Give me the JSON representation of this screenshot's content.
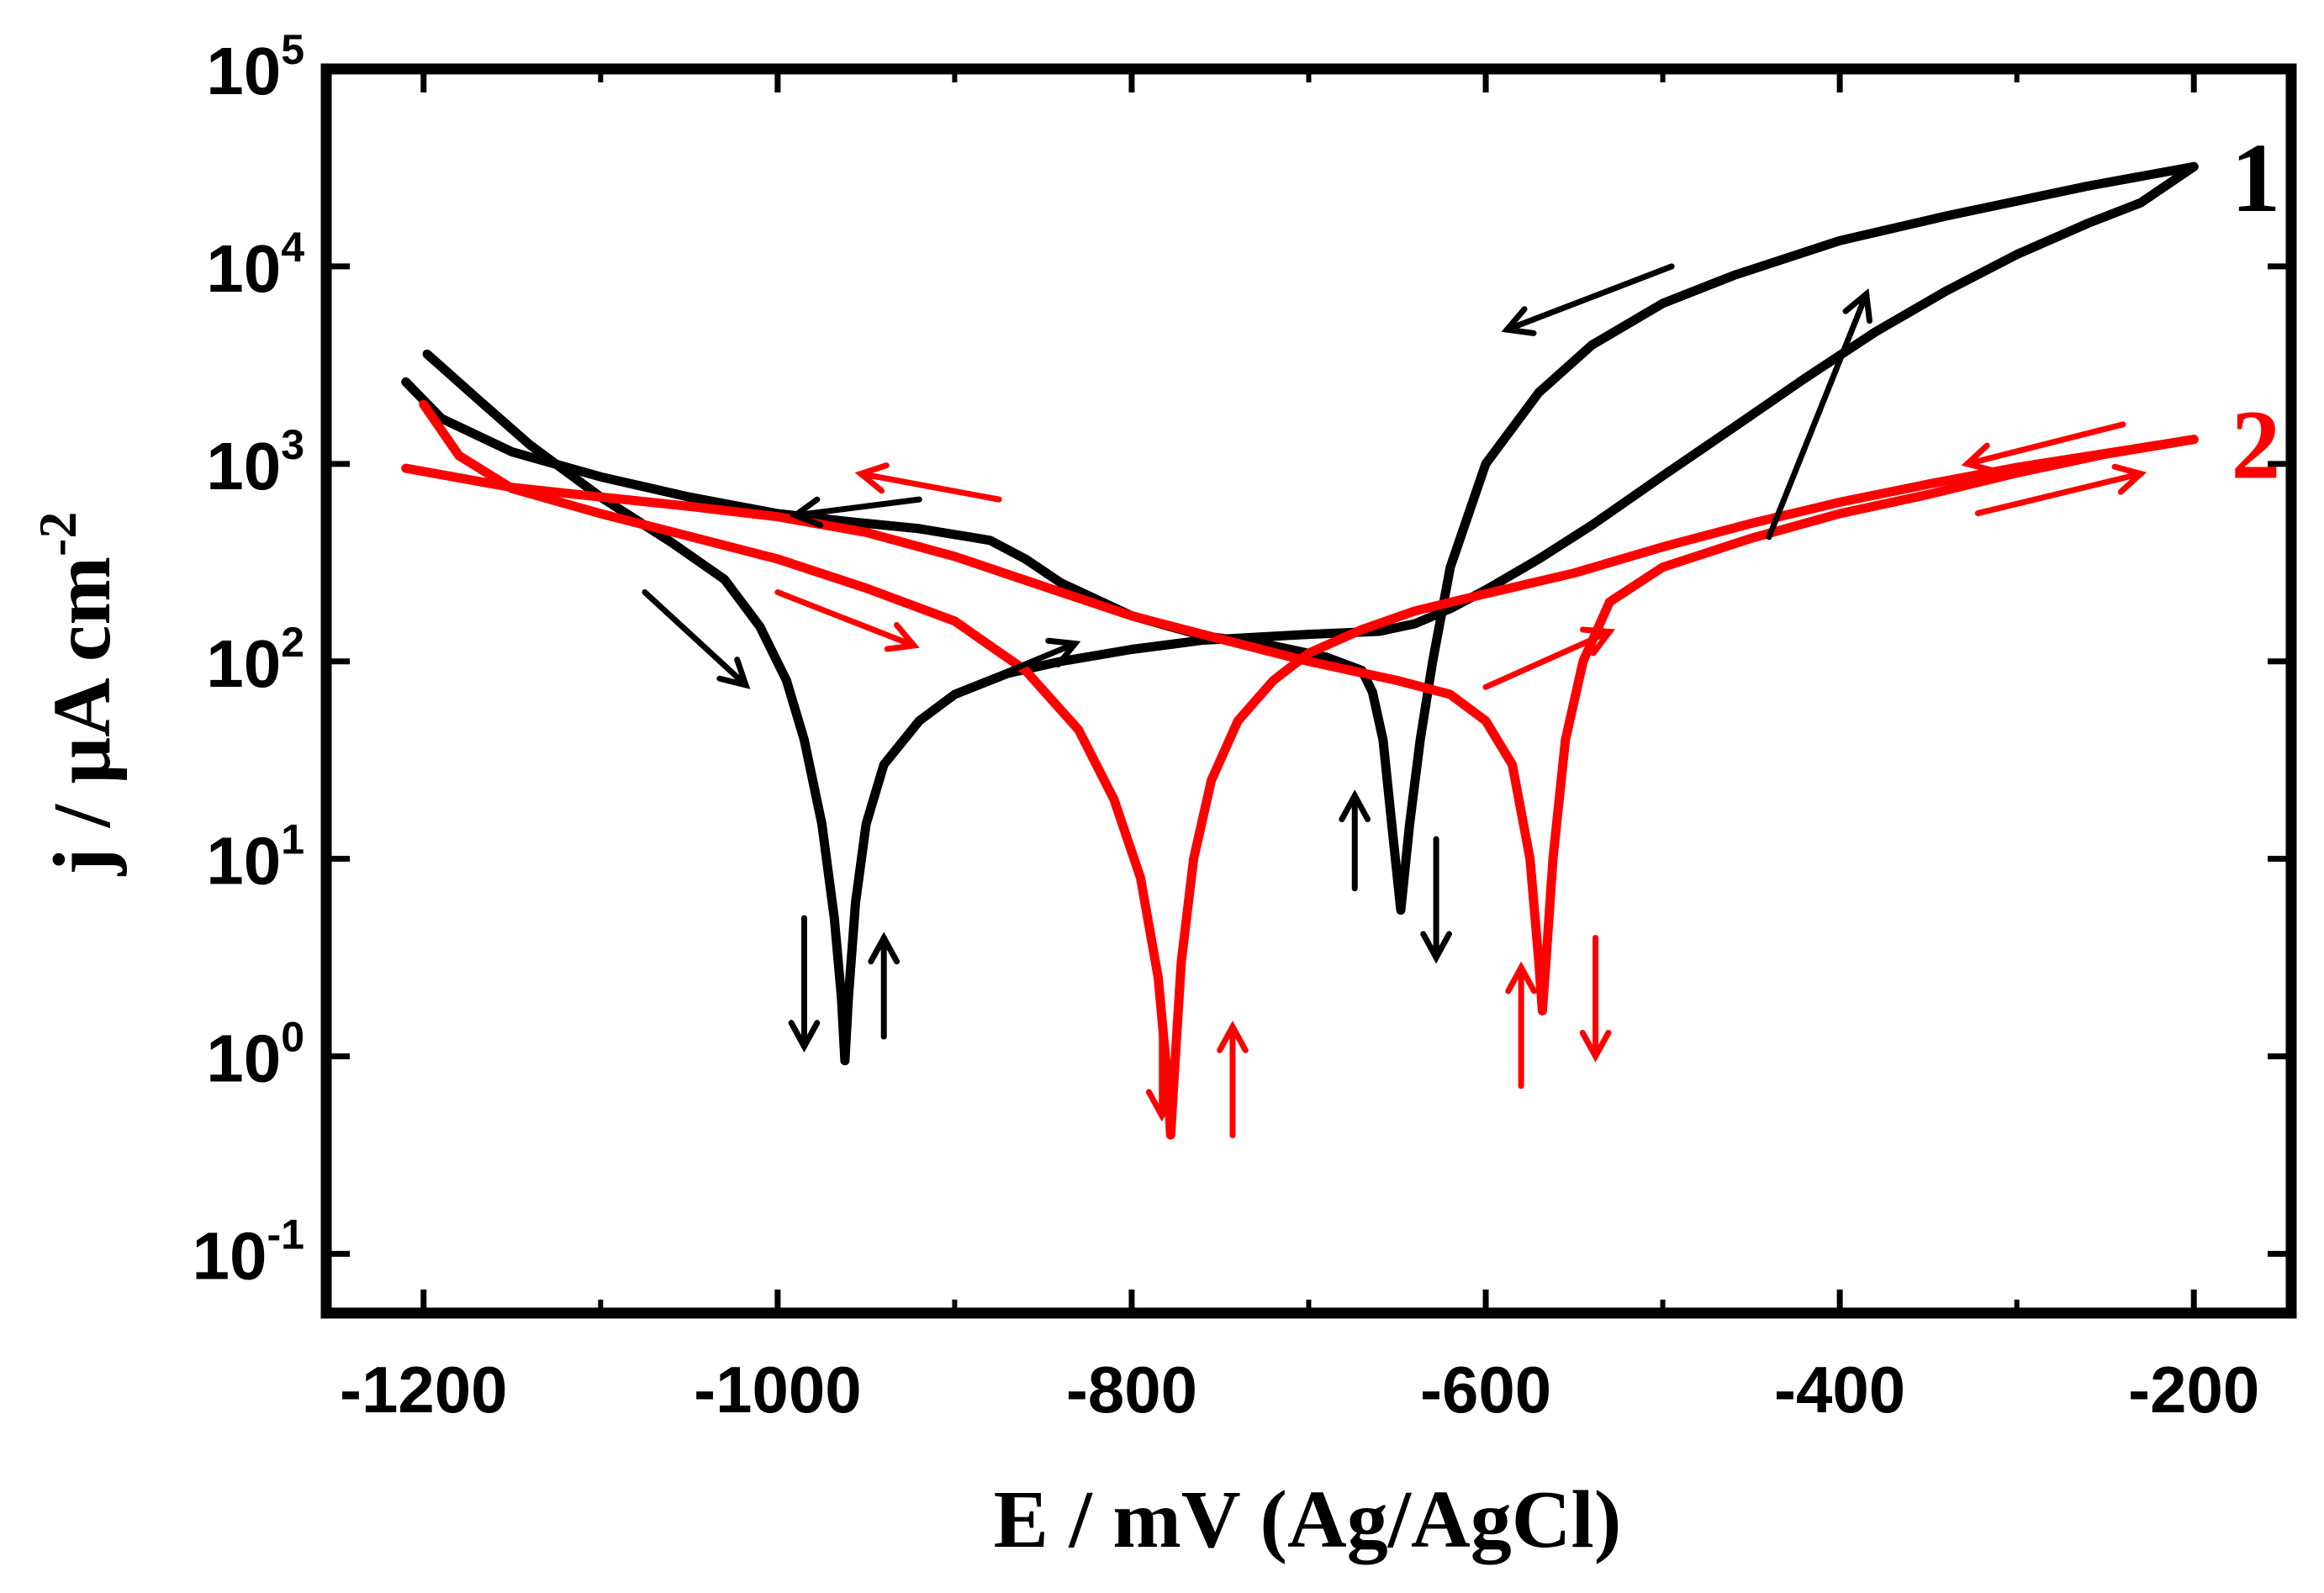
{
  "chart_data": {
    "type": "line",
    "title": "",
    "xlabel": "E / mV (Ag/AgCl)",
    "ylabel": "j / μA cm",
    "ylabel_exponent": "-2",
    "xlim": [
      -1255,
      -145
    ],
    "ylim_log10": [
      -1.3,
      5
    ],
    "y_scale": "log",
    "x_ticks": [
      {
        "value": -1200,
        "label": "-1200"
      },
      {
        "value": -1000,
        "label": "-1000"
      },
      {
        "value": -800,
        "label": "-800"
      },
      {
        "value": -600,
        "label": "-600"
      },
      {
        "value": -400,
        "label": "-400"
      },
      {
        "value": -200,
        "label": "-200"
      }
    ],
    "y_ticks": [
      {
        "exp": 5,
        "base": "10",
        "sup": "5"
      },
      {
        "exp": 4,
        "base": "10",
        "sup": "4"
      },
      {
        "exp": 3,
        "base": "10",
        "sup": "3"
      },
      {
        "exp": 2,
        "base": "10",
        "sup": "2"
      },
      {
        "exp": 1,
        "base": "10",
        "sup": "1"
      },
      {
        "exp": 0,
        "base": "10",
        "sup": "0"
      },
      {
        "exp": -1,
        "base": "10",
        "sup": "-1"
      }
    ],
    "series": [
      {
        "name": "1",
        "color": "#000000",
        "forward": [
          [
            -1198,
            3600
          ],
          [
            -1170,
            2150
          ],
          [
            -1140,
            1250
          ],
          [
            -1100,
            680
          ],
          [
            -1060,
            400
          ],
          [
            -1030,
            260
          ],
          [
            -1010,
            150
          ],
          [
            -995,
            80
          ],
          [
            -985,
            40
          ],
          [
            -975,
            15
          ],
          [
            -968,
            5
          ],
          [
            -964,
            2
          ],
          [
            -962,
            0.95
          ],
          [
            -960,
            2
          ],
          [
            -956,
            6
          ],
          [
            -950,
            15
          ],
          [
            -940,
            30
          ],
          [
            -920,
            50
          ],
          [
            -900,
            68
          ],
          [
            -870,
            87
          ],
          [
            -840,
            100
          ],
          [
            -800,
            115
          ],
          [
            -760,
            128
          ],
          [
            -720,
            134
          ],
          [
            -700,
            137
          ],
          [
            -660,
            142
          ],
          [
            -640,
            155
          ],
          [
            -620,
            185
          ],
          [
            -600,
            230
          ],
          [
            -570,
            330
          ],
          [
            -540,
            490
          ],
          [
            -500,
            870
          ],
          [
            -460,
            1530
          ],
          [
            -420,
            2700
          ],
          [
            -380,
            4650
          ],
          [
            -340,
            7500
          ],
          [
            -300,
            11500
          ],
          [
            -260,
            16500
          ],
          [
            -230,
            21000
          ],
          [
            -200,
            32000
          ]
        ],
        "reverse": [
          [
            -200,
            32000
          ],
          [
            -260,
            25500
          ],
          [
            -340,
            18000
          ],
          [
            -400,
            13500
          ],
          [
            -460,
            9000
          ],
          [
            -500,
            6500
          ],
          [
            -540,
            4000
          ],
          [
            -570,
            2300
          ],
          [
            -600,
            1000
          ],
          [
            -620,
            300
          ],
          [
            -630,
            100
          ],
          [
            -637,
            40
          ],
          [
            -643,
            15
          ],
          [
            -648,
            5.5
          ],
          [
            -652,
            12
          ],
          [
            -658,
            40
          ],
          [
            -664,
            70
          ],
          [
            -670,
            90
          ],
          [
            -690,
            105
          ],
          [
            -720,
            120
          ],
          [
            -760,
            135
          ],
          [
            -800,
            170
          ],
          [
            -840,
            250
          ],
          [
            -860,
            330
          ],
          [
            -880,
            410
          ],
          [
            -920,
            470
          ],
          [
            -960,
            510
          ],
          [
            -1000,
            560
          ],
          [
            -1050,
            680
          ],
          [
            -1100,
            860
          ],
          [
            -1150,
            1150
          ],
          [
            -1190,
            1700
          ],
          [
            -1210,
            2600
          ]
        ]
      },
      {
        "name": "2",
        "color": "#ff0000",
        "forward": [
          [
            -1200,
            2000
          ],
          [
            -1180,
            1100
          ],
          [
            -1150,
            750
          ],
          [
            -1100,
            560
          ],
          [
            -1050,
            430
          ],
          [
            -1000,
            330
          ],
          [
            -950,
            235
          ],
          [
            -900,
            160
          ],
          [
            -860,
            90
          ],
          [
            -830,
            45
          ],
          [
            -810,
            20
          ],
          [
            -795,
            8
          ],
          [
            -785,
            2.5
          ],
          [
            -780,
            0.8
          ],
          [
            -778,
            0.4
          ],
          [
            -776,
            0.8
          ],
          [
            -772,
            3
          ],
          [
            -765,
            10
          ],
          [
            -755,
            25
          ],
          [
            -740,
            50
          ],
          [
            -720,
            80
          ],
          [
            -700,
            110
          ],
          [
            -670,
            145
          ],
          [
            -640,
            180
          ],
          [
            -600,
            220
          ],
          [
            -550,
            280
          ],
          [
            -500,
            380
          ],
          [
            -450,
            500
          ],
          [
            -400,
            640
          ],
          [
            -350,
            790
          ],
          [
            -300,
            960
          ],
          [
            -250,
            1130
          ],
          [
            -200,
            1330
          ]
        ],
        "reverse": [
          [
            -200,
            1330
          ],
          [
            -250,
            1120
          ],
          [
            -300,
            900
          ],
          [
            -350,
            700
          ],
          [
            -400,
            560
          ],
          [
            -450,
            420
          ],
          [
            -500,
            300
          ],
          [
            -530,
            200
          ],
          [
            -545,
            100
          ],
          [
            -555,
            40
          ],
          [
            -562,
            10
          ],
          [
            -566,
            3
          ],
          [
            -568,
            1.7
          ],
          [
            -570,
            3
          ],
          [
            -575,
            10
          ],
          [
            -585,
            30
          ],
          [
            -600,
            50
          ],
          [
            -620,
            68
          ],
          [
            -650,
            80
          ],
          [
            -700,
            100
          ],
          [
            -750,
            130
          ],
          [
            -800,
            170
          ],
          [
            -850,
            240
          ],
          [
            -900,
            340
          ],
          [
            -950,
            450
          ],
          [
            -1000,
            540
          ],
          [
            -1050,
            610
          ],
          [
            -1100,
            680
          ],
          [
            -1150,
            760
          ],
          [
            -1210,
            950
          ]
        ]
      }
    ],
    "series_labels": [
      {
        "text": "1",
        "color": "#000000",
        "e": -165,
        "logj": 4.45
      },
      {
        "text": "2",
        "color": "#ff0000",
        "e": -165,
        "logj": 3.1
      }
    ],
    "arrows": [
      {
        "color": "#000000",
        "e1": -1075,
        "l1": 2.35,
        "e2": -1018,
        "l2": 1.88
      },
      {
        "color": "#000000",
        "e1": -875,
        "l1": 1.93,
        "e2": -832,
        "l2": 2.09
      },
      {
        "color": "#000000",
        "e1": -920,
        "l1": 2.82,
        "e2": -990,
        "l2": 2.74
      },
      {
        "color": "#000000",
        "e1": -440,
        "l1": 2.63,
        "e2": -385,
        "l2": 3.86
      },
      {
        "color": "#000000",
        "e1": -495,
        "l1": 4.0,
        "e2": -588,
        "l2": 3.68
      },
      {
        "color": "#000000",
        "e1": -985,
        "l1": 0.7,
        "e2": -985,
        "l2": 0.05
      },
      {
        "color": "#000000",
        "e1": -940,
        "l1": 0.1,
        "e2": -940,
        "l2": 0.6
      },
      {
        "color": "#000000",
        "e1": -674,
        "l1": 0.85,
        "e2": -674,
        "l2": 1.32
      },
      {
        "color": "#000000",
        "e1": -628,
        "l1": 1.1,
        "e2": -628,
        "l2": 0.5
      },
      {
        "color": "#ff0000",
        "e1": -1000,
        "l1": 2.35,
        "e2": -923,
        "l2": 2.08
      },
      {
        "color": "#ff0000",
        "e1": -875,
        "l1": 2.82,
        "e2": -953,
        "l2": 2.95
      },
      {
        "color": "#ff0000",
        "e1": -600,
        "l1": 1.87,
        "e2": -530,
        "l2": 2.15
      },
      {
        "color": "#ff0000",
        "e1": -322,
        "l1": 2.75,
        "e2": -230,
        "l2": 2.95
      },
      {
        "color": "#ff0000",
        "e1": -240,
        "l1": 3.2,
        "e2": -328,
        "l2": 3.0
      },
      {
        "color": "#ff0000",
        "e1": -783,
        "l1": 0.3,
        "e2": -783,
        "l2": -0.3
      },
      {
        "color": "#ff0000",
        "e1": -743,
        "l1": -0.4,
        "e2": -743,
        "l2": 0.15
      },
      {
        "color": "#ff0000",
        "e1": -580,
        "l1": -0.15,
        "e2": -580,
        "l2": 0.45
      },
      {
        "color": "#ff0000",
        "e1": -538,
        "l1": 0.6,
        "e2": -538,
        "l2": 0.0
      }
    ]
  }
}
